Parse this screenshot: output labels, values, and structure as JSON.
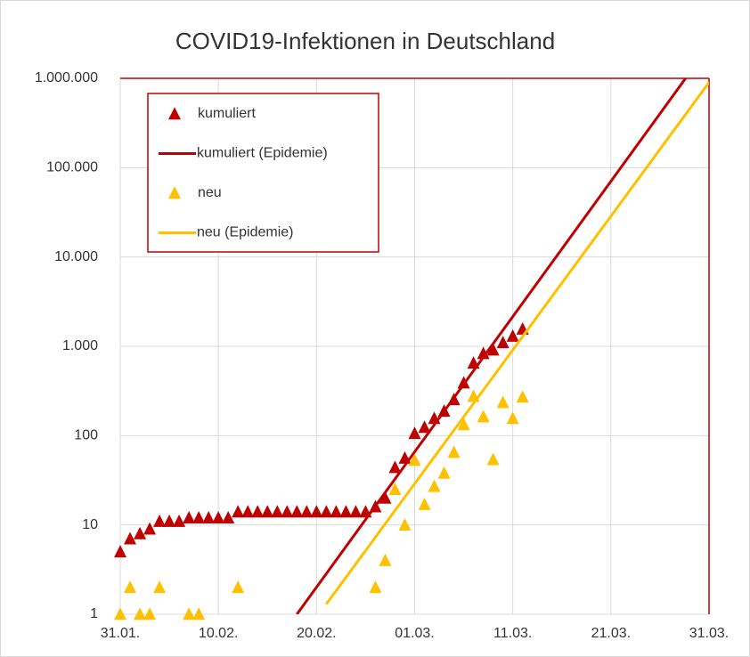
{
  "chart_data": {
    "type": "scatter",
    "title": "COVID19-Infektionen in Deutschland",
    "log_y": true,
    "grid": true,
    "legend": "upper left",
    "xlim": [
      "31.01.",
      "31.03."
    ],
    "xticks": [
      "31.01.",
      "10.02.",
      "20.02.",
      "01.03.",
      "11.03.",
      "21.03.",
      "31.03."
    ],
    "ylim": [
      1,
      1000000
    ],
    "yticks": [
      1,
      10,
      100,
      {
        "value": 1000,
        "label": "1.000"
      },
      {
        "value": 10000,
        "label": "10.000"
      },
      {
        "value": 100000,
        "label": "100.000"
      },
      {
        "value": 1000000,
        "label": "1.000.000"
      }
    ],
    "series": [
      {
        "name": "kumuliert",
        "type": "scatter",
        "marker": "triangle",
        "color": "#c00000",
        "x": [
          "31.01.",
          "01.02.",
          "02.02.",
          "03.02.",
          "04.02.",
          "05.02.",
          "06.02.",
          "07.02.",
          "08.02.",
          "09.02.",
          "10.02.",
          "11.02.",
          "12.02.",
          "13.02.",
          "14.02.",
          "15.02.",
          "16.02.",
          "17.02.",
          "18.02.",
          "19.02.",
          "20.02.",
          "21.02.",
          "22.02.",
          "23.02.",
          "24.02.",
          "25.02.",
          "26.02.",
          "27.02.",
          "28.02.",
          "29.02.",
          "01.03.",
          "02.03.",
          "03.03.",
          "04.03.",
          "05.03.",
          "06.03.",
          "07.03.",
          "08.03.",
          "09.03.",
          "10.03.",
          "11.03.",
          "12.03."
        ],
        "values": [
          5,
          7,
          8,
          9,
          11,
          11,
          11,
          12,
          12,
          12,
          12,
          12,
          14,
          14,
          14,
          14,
          14,
          14,
          14,
          14,
          14,
          14,
          14,
          14,
          14,
          14,
          16,
          20,
          44,
          56,
          106,
          124,
          156,
          188,
          253,
          390,
          650,
          830,
          910,
          1100,
          1300,
          1560
        ]
      },
      {
        "name": "kumuliert (Epidemie)",
        "type": "line",
        "color": "#c00000",
        "x": [
          "18.02.",
          "31.03."
        ],
        "values": [
          1,
          2300000
        ]
      },
      {
        "name": "neu",
        "type": "scatter",
        "marker": "triangle",
        "color": "#ffc000",
        "x": [
          "31.01.",
          "01.02.",
          "02.02.",
          "03.02.",
          "04.02.",
          "07.02.",
          "08.02.",
          "12.02.",
          "26.02.",
          "27.02.",
          "28.02.",
          "29.02.",
          "01.03.",
          "02.03.",
          "03.03.",
          "04.03.",
          "05.03.",
          "06.03.",
          "07.03.",
          "08.03.",
          "09.03.",
          "10.03.",
          "11.03.",
          "12.03."
        ],
        "values": [
          1,
          2,
          1,
          1,
          2,
          1,
          1,
          2,
          2,
          4,
          25,
          10,
          53,
          17,
          27,
          38,
          65,
          133,
          275,
          163,
          54,
          235,
          156,
          271
        ]
      },
      {
        "name": "neu (Epidemie)",
        "type": "line",
        "color": "#ffc000",
        "x": [
          "21.02.",
          "31.03."
        ],
        "values": [
          1.3,
          900000
        ]
      }
    ]
  }
}
